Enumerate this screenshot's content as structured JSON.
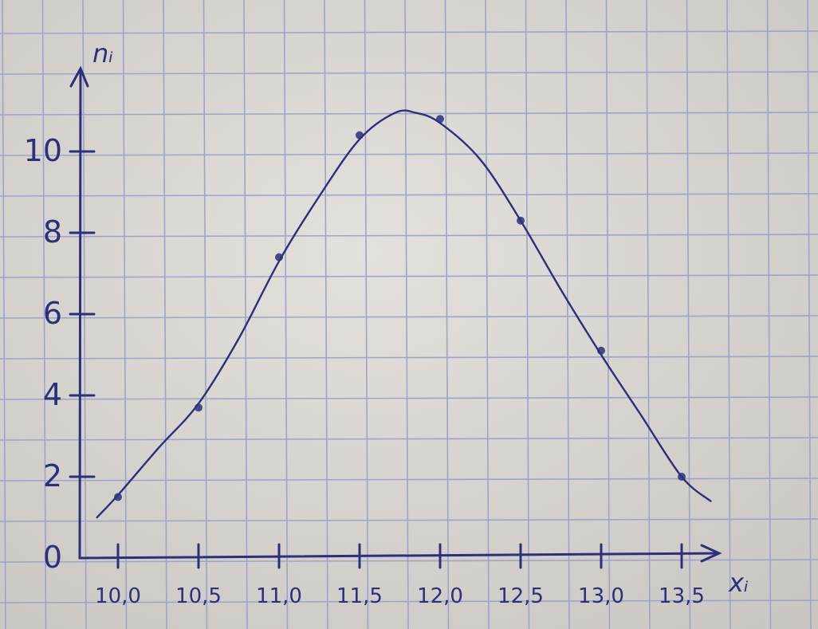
{
  "chart_data": {
    "type": "line",
    "title": "",
    "xlabel": "xᵢ",
    "ylabel": "nᵢ",
    "xlim": [
      9.75,
      14.0
    ],
    "ylim": [
      0,
      12
    ],
    "x_ticks": [
      "10,0",
      "10,5",
      "11,0",
      "11,5",
      "12,0",
      "12,5",
      "13,0",
      "13,5"
    ],
    "y_ticks": [
      "0",
      "2",
      "4",
      "6",
      "8",
      "10"
    ],
    "points": [
      {
        "x": 10.0,
        "y": 1.5
      },
      {
        "x": 10.5,
        "y": 3.7
      },
      {
        "x": 11.0,
        "y": 7.4
      },
      {
        "x": 11.5,
        "y": 10.4
      },
      {
        "x": 12.0,
        "y": 10.8
      },
      {
        "x": 12.5,
        "y": 8.3
      },
      {
        "x": 13.0,
        "y": 5.1
      },
      {
        "x": 13.5,
        "y": 2.0
      }
    ],
    "curve": [
      {
        "x": 9.87,
        "y": 1.0
      },
      {
        "x": 10.0,
        "y": 1.55
      },
      {
        "x": 10.25,
        "y": 2.7
      },
      {
        "x": 10.5,
        "y": 3.8
      },
      {
        "x": 10.75,
        "y": 5.4
      },
      {
        "x": 11.0,
        "y": 7.3
      },
      {
        "x": 11.25,
        "y": 8.9
      },
      {
        "x": 11.5,
        "y": 10.3
      },
      {
        "x": 11.72,
        "y": 10.95
      },
      {
        "x": 11.85,
        "y": 10.95
      },
      {
        "x": 12.0,
        "y": 10.7
      },
      {
        "x": 12.25,
        "y": 9.8
      },
      {
        "x": 12.5,
        "y": 8.3
      },
      {
        "x": 12.75,
        "y": 6.6
      },
      {
        "x": 13.0,
        "y": 5.0
      },
      {
        "x": 13.25,
        "y": 3.5
      },
      {
        "x": 13.5,
        "y": 2.0
      },
      {
        "x": 13.68,
        "y": 1.4
      }
    ],
    "grid": true,
    "colors": {
      "ink": "#2e2f7a",
      "grid": "#9fa3c9",
      "paper": "#d9d6d2"
    }
  }
}
